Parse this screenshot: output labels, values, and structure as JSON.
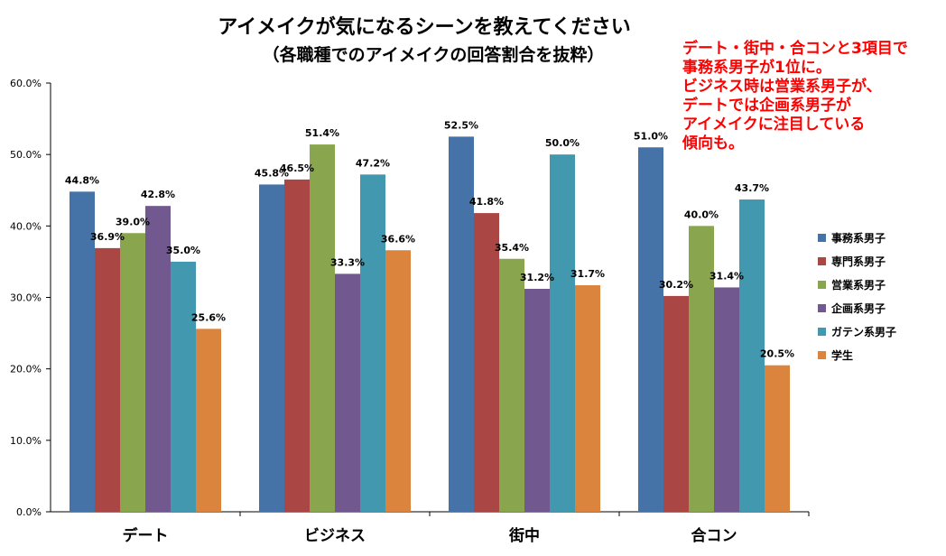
{
  "title": "アイメイクが気になるシーンを教えてください",
  "subtitle": "（各職種でのアイメイクの回答割合を抜粋）",
  "annotation": [
    "デート・街中・合コンと3項目で",
    "事務系男子が1位に。",
    "ビジネス時は営業系男子が、",
    "デートでは企画系男子が",
    "アイメイクに注目している",
    "傾向も。"
  ],
  "chart_data": {
    "type": "bar",
    "title": "アイメイクが気になるシーンを教えてください",
    "subtitle": "（各職種でのアイメイクの回答割合を抜粋）",
    "categories": [
      "デート",
      "ビジネス",
      "街中",
      "合コン"
    ],
    "series": [
      {
        "name": "事務系男子",
        "color": "#4572A7",
        "values": [
          44.8,
          45.8,
          52.5,
          51.0
        ]
      },
      {
        "name": "専門系男子",
        "color": "#AA4643",
        "values": [
          36.9,
          46.5,
          41.8,
          30.2
        ]
      },
      {
        "name": "営業系男子",
        "color": "#89A54E",
        "values": [
          39.0,
          51.4,
          35.4,
          40.0
        ]
      },
      {
        "name": "企画系男子",
        "color": "#71588F",
        "values": [
          42.8,
          33.3,
          31.2,
          31.4
        ]
      },
      {
        "name": "ガテン系男子",
        "color": "#4198AF",
        "values": [
          35.0,
          47.2,
          50.0,
          43.7
        ]
      },
      {
        "name": "学生",
        "color": "#DB843D",
        "values": [
          25.6,
          36.6,
          31.7,
          20.5
        ]
      }
    ],
    "ylim": [
      0,
      60
    ],
    "yticks": [
      "0.0%",
      "10.0%",
      "20.0%",
      "30.0%",
      "40.0%",
      "50.0%",
      "60.0%"
    ],
    "grid": false,
    "legend_position": "right",
    "value_format": "percent_1dp"
  }
}
